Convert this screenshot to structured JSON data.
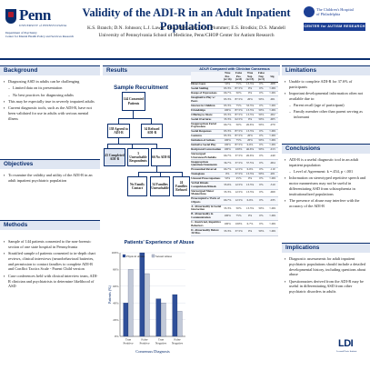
{
  "header": {
    "logo_word": "Penn",
    "logo_sub": "UNIVERSITY of PENNSYLVANIA",
    "dept_line1": "Department of Psychiatry",
    "dept_line2": "Center for Mental Health Policy and Services Research",
    "title": "Validity of the ADI-R in an Adult Inpatient Population",
    "authors": "K.S. Branch; D.N. Johnson; L.J. Lawer, M.A. McCarthy, L.A. Plummer; E.S. Brodkin; D.S. Mandell",
    "affiliation": "University of Pennsylvania School of Medicine, Penn/CHOP Center for Autism Research",
    "chop_line1": "The Children's Hospital",
    "chop_line2": "of Philadelphia",
    "car_badge": "CENTER for AUTISM RESEARCH"
  },
  "sections": {
    "background": {
      "heading": "Background",
      "items": [
        {
          "text": "Diagnosing ASD in adults can be challenging",
          "sub": false
        },
        {
          "text": "Limited data on its presentation",
          "sub": true
        },
        {
          "text": "No best practices for diagnosing adults",
          "sub": true
        },
        {
          "text": "This may be especially true in severely impaired adults",
          "sub": false
        },
        {
          "text": "Current diagnostic tools, such as the ADI-R, have not been validated for use in adults with serious mental illness",
          "sub": false
        }
      ]
    },
    "objectives": {
      "heading": "Objectives",
      "items": [
        {
          "text": "To examine the validity and utility of the ADI-R in an adult inpatient psychiatric population",
          "sub": false
        }
      ]
    },
    "methods": {
      "heading": "Methods",
      "items": [
        {
          "text": "Sample of 144 patients consented to the non-forensic section of one state hospital in Pennsylvania",
          "sub": false
        },
        {
          "text": "Stratified sample of patients consented to in-depth chart reviews, clinical interviews (neurobehavioral batteries, and permission to contact families to complete ADI-R and Conflict Tactics Scale - Parent Child version",
          "sub": false
        },
        {
          "text": "Case conferences held with clinical interview team, ADI-R clinician and psychiatrists to determine likelihood of ASD",
          "sub": false
        }
      ]
    },
    "results": {
      "heading": "Results"
    },
    "limitations": {
      "heading": "Limitations",
      "items": [
        {
          "text": "Unable to complete ADI-R for 37.6% of participants",
          "sub": false
        },
        {
          "text": "Important developmental information often not available due to:",
          "sub": false
        },
        {
          "text": "Parent recall (age of participant)",
          "sub": true
        },
        {
          "text": "Family member other than parent serving as informant",
          "sub": true
        }
      ]
    },
    "conclusions": {
      "heading": "Conclusions",
      "items": [
        {
          "text": "ADI-R is a useful diagnostic tool in an adult inpatient population",
          "sub": false
        },
        {
          "text": "Level of Agreement: k =.454, p <.001",
          "sub": true
        },
        {
          "text": "Information on stereotyped repetitive speech and motor mannerisms may not be useful in differentiating ASD from schizophrenia in institutionalized populations",
          "sub": false
        },
        {
          "text": "The presence of abuse may interfere with the accuracy of the ADI-R",
          "sub": false
        }
      ]
    },
    "implications": {
      "heading": "Implications",
      "items": [
        {
          "text": "Diagnostic assessments for adult inpatient psychiatric populations should include a detailed developmental history, including questions about abuse",
          "sub": false
        },
        {
          "text": "Questionnaires derived from the ADI-R may be useful in differentiating ASD from other psychiatric disorders in adults",
          "sub": false
        }
      ]
    }
  },
  "diagram": {
    "title": "Sample Recruitment",
    "nodes": {
      "consented": "144 Consented Patients",
      "agreed": "138 Agreed to ADI-R",
      "refused": "34 Refused ADI-R",
      "completed": "43 Completed ADI-R",
      "unreachable": "3 Unreachable Respondents",
      "notdone": "66 No ADI-R",
      "nofamily": "No Family Contact",
      "families": "34 Families Unreachable",
      "famrefused": "24 Families Refused"
    }
  },
  "chart_data": {
    "type": "bar",
    "title": "Patients' Experience of Abuse",
    "xlabel": "Consensus Diagnosis",
    "ylabel": "Patients (%)",
    "categories": [
      "True Positive",
      "False Positive",
      "True Negative",
      "False Negative"
    ],
    "series": [
      {
        "name": "Physical Abuse",
        "color": "#2f4f99",
        "values": [
          40,
          100,
          45,
          50
        ]
      },
      {
        "name": "Sexual Abuse",
        "color": "#c2c9d8",
        "values": [
          80,
          75,
          40,
          30
        ]
      }
    ],
    "ylim": [
      0,
      100
    ],
    "yticks": [
      "0%",
      "20%",
      "40%",
      "60%",
      "80%",
      "100%"
    ],
    "legend_position": "top-left"
  },
  "table": {
    "caption": "ADI-R Compared with Clinician Consensus",
    "headers": [
      "",
      "True Pos. (n=16)",
      "False Pos. (n=8)",
      "True Neg. (n=15)",
      "False Neg. (n=3)",
      "Sig."
    ],
    "rows": [
      [
        "Direct Gaze",
        "50%",
        "75%",
        "13.3%",
        "0%",
        ".008"
      ],
      [
        "Social Smiling",
        "93.3%",
        "87.5%",
        "0%",
        "0%",
        "<.001"
      ],
      [
        "Range of Expressions",
        "66.7%",
        "50%",
        "0%",
        "0%",
        "<.001"
      ],
      [
        "Imaginative Play w/ Peers",
        "93.3%",
        "87.5%",
        "20%",
        "50%",
        ".001"
      ],
      [
        "Interest in Children",
        "93.3%",
        "75%",
        "33.3%",
        "0%",
        "<.001"
      ],
      [
        "Friendships",
        "100%",
        "87.5%",
        "13.3%",
        "50%",
        "<.001"
      ],
      [
        "Offering to Share",
        "93.3%",
        "87.5%",
        "13.3%",
        "50%",
        ".002"
      ],
      [
        "Social Overtures",
        "33.3%",
        "62.5%",
        "0%",
        "50%",
        ".005"
      ],
      [
        "Inappropriate Facial Expressions",
        "66.7%",
        "50%",
        "26.6%",
        "50%",
        ".070"
      ],
      [
        "Social Responses",
        "93.3%",
        "87.5%",
        "13.3%",
        "0%",
        "<.001"
      ],
      [
        "Gestures",
        "93.3%",
        "87.5%",
        "20%",
        "0%",
        "<.001"
      ],
      [
        "Imitation of Actions",
        "100%",
        "75%",
        "20%",
        "50%",
        "<.001"
      ],
      [
        "Imitative Social Play",
        "100%",
        "87.5%",
        "6.6%",
        "0%",
        "<.001"
      ],
      [
        "Reciprocal Conversation",
        "100%",
        "100%",
        "46.6%",
        "50%",
        ".013"
      ],
      [
        "Stereotyped Utterances/Echolalia",
        "66.7%",
        "37.5%",
        "26.6%",
        "0%",
        ".240"
      ],
      [
        "Inappropriate Questions/Statements",
        "36.7%",
        "37.5%",
        "37.5%",
        "0%",
        ".004"
      ],
      [
        "Pronominal Reversal",
        "66.7%",
        "12.5%",
        "6.6%",
        "0%",
        ".110"
      ],
      [
        "Neologisms",
        "0%",
        "37.5%",
        "13.3%",
        "50%",
        ".201"
      ],
      [
        "Unusual Preoccupations",
        "50%",
        "25%",
        "0%",
        "0%",
        "<.001"
      ],
      [
        "Verbal Rituals Compulsions/Rituals",
        "33.6%",
        "12.5%",
        "13.3%",
        "0%",
        ".310"
      ],
      [
        "Stereotyped Motor Mannerisms",
        "33.3%",
        "12.5%",
        "13.3%",
        "0%",
        ".069"
      ],
      [
        "Preoccupied w/ Parts of Objects",
        "66.7%",
        "12.5%",
        "6.6%",
        "0%",
        ".035"
      ],
      [
        "A- Abnormality in Social Interaction",
        "33.3%",
        "50%",
        "13.3%",
        "50%",
        "<.001"
      ],
      [
        "B- Abnormality in Communication",
        "100%",
        "75%",
        "0%",
        "0%",
        "<.001"
      ],
      [
        "C- Restricted, Repetitive Behaviors",
        "100%",
        "100%",
        "6.7%",
        "0%",
        "<.001"
      ],
      [
        "D- Abnormality Before 36 Mos.",
        "33.3%",
        "37.5%",
        "0%",
        "50%",
        "<.001"
      ]
    ]
  },
  "footer": {
    "ldi_word": "LDI",
    "ldi_sub": "Leonard Davis Institute"
  }
}
